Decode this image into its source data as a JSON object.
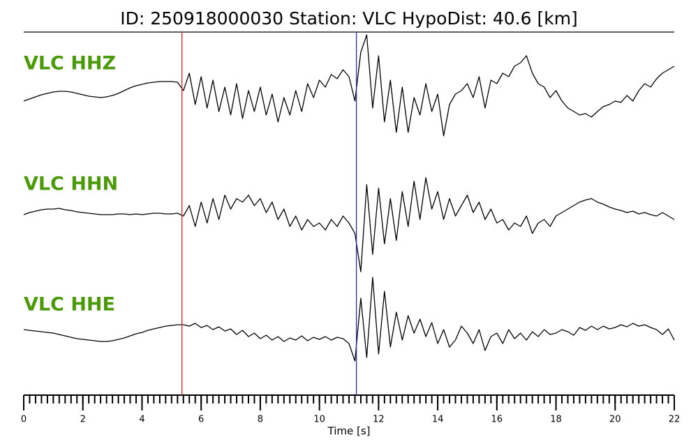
{
  "chart_data": {
    "type": "seismogram",
    "title": "ID: 250918000030   Station: VLC   HypoDist:    40.6 [km]",
    "xlabel": "Time [s]",
    "xlim": [
      0,
      22
    ],
    "xticks": [
      0,
      2,
      4,
      6,
      8,
      10,
      12,
      14,
      16,
      18,
      20,
      22
    ],
    "xminorticks": [
      0,
      0.2,
      0.4,
      0.6,
      0.8,
      1,
      1.2,
      1.4,
      1.6,
      1.8,
      2,
      2.2,
      2.4,
      2.6,
      2.8,
      3,
      3.2,
      3.4,
      3.6,
      3.8,
      4,
      4.2,
      4.4,
      4.6,
      4.8,
      5,
      5.2,
      5.4,
      5.6,
      5.8,
      6,
      6.2,
      6.4,
      6.6,
      6.8,
      7,
      7.2,
      7.4,
      7.6,
      7.8,
      8,
      8.2,
      8.4,
      8.6,
      8.8,
      9,
      9.2,
      9.4,
      9.6,
      9.8,
      10,
      10.2,
      10.4,
      10.6,
      10.8,
      11,
      11.2,
      11.4,
      11.6,
      11.8,
      12,
      12.2,
      12.4,
      12.6,
      12.8,
      13,
      13.2,
      13.4,
      13.6,
      13.8,
      14,
      14.2,
      14.4,
      14.6,
      14.8,
      15,
      15.2,
      15.4,
      15.6,
      15.8,
      16,
      16.2,
      16.4,
      16.6,
      16.8,
      17,
      17.2,
      17.4,
      17.6,
      17.8,
      18,
      18.2,
      18.4,
      18.6,
      18.8,
      19,
      19.2,
      19.4,
      19.6,
      19.8,
      20,
      20.2,
      20.4,
      20.6,
      20.8,
      21,
      21.2,
      21.4,
      21.6,
      21.8,
      22
    ],
    "ylim": [
      -85,
      85
    ],
    "label_color": "#4a9a0a",
    "x": [
      0,
      0.2,
      0.4,
      0.6,
      0.8,
      1,
      1.2,
      1.4,
      1.6,
      1.8,
      2,
      2.2,
      2.4,
      2.6,
      2.8,
      3,
      3.2,
      3.4,
      3.6,
      3.8,
      4,
      4.2,
      4.4,
      4.6,
      4.8,
      5,
      5.2,
      5.4,
      5.6,
      5.8,
      6,
      6.2,
      6.4,
      6.6,
      6.8,
      7,
      7.2,
      7.4,
      7.6,
      7.8,
      8,
      8.2,
      8.4,
      8.6,
      8.8,
      9,
      9.2,
      9.4,
      9.6,
      9.8,
      10,
      10.2,
      10.4,
      10.6,
      10.8,
      11,
      11.2,
      11.4,
      11.6,
      11.8,
      12,
      12.2,
      12.4,
      12.6,
      12.8,
      13,
      13.2,
      13.4,
      13.6,
      13.8,
      14,
      14.2,
      14.4,
      14.6,
      14.8,
      15,
      15.2,
      15.4,
      15.6,
      15.8,
      16,
      16.2,
      16.4,
      16.6,
      16.8,
      17,
      17.2,
      17.4,
      17.6,
      17.8,
      18,
      18.2,
      18.4,
      18.6,
      18.8,
      19,
      19.2,
      19.4,
      19.6,
      19.8,
      20,
      20.2,
      20.4,
      20.6,
      20.8,
      21,
      21.2,
      21.4,
      21.6,
      21.8,
      22
    ],
    "series": [
      {
        "name": "VLC HHZ",
        "color": "#000000",
        "values": [
          -10,
          -7,
          -4,
          -1,
          1,
          3,
          4,
          4,
          3,
          1,
          -1,
          -3,
          -4,
          -5,
          -4,
          -2,
          1,
          5,
          9,
          12,
          14,
          16,
          17,
          18,
          18,
          18,
          17,
          5,
          30,
          -15,
          25,
          -20,
          20,
          -25,
          10,
          -30,
          15,
          -35,
          5,
          -25,
          10,
          -30,
          0,
          -40,
          -5,
          -30,
          5,
          -25,
          15,
          -5,
          20,
          10,
          28,
          22,
          35,
          25,
          -10,
          60,
          85,
          -20,
          55,
          -40,
          20,
          -55,
          10,
          -55,
          -5,
          -30,
          15,
          -25,
          0,
          -60,
          -15,
          0,
          5,
          15,
          -5,
          25,
          -20,
          20,
          15,
          30,
          25,
          40,
          45,
          55,
          30,
          15,
          10,
          -5,
          5,
          -10,
          -20,
          -25,
          -30,
          -28,
          -33,
          -25,
          -18,
          -15,
          -10,
          -12,
          -2,
          -10,
          5,
          15,
          10,
          22,
          30,
          35,
          40
        ]
      },
      {
        "name": "VLC HHN",
        "color": "#000000",
        "values": [
          -3,
          0,
          2,
          4,
          5,
          5,
          6,
          4,
          3,
          1,
          0,
          -1,
          -2,
          -3,
          -3,
          -3,
          -2,
          -2,
          -3,
          -2,
          -3,
          -2,
          -1,
          -1,
          -2,
          -2,
          -1,
          -5,
          10,
          -20,
          15,
          -15,
          20,
          -10,
          25,
          5,
          20,
          15,
          25,
          10,
          20,
          0,
          15,
          -10,
          5,
          -20,
          -5,
          -25,
          -10,
          -20,
          -15,
          -25,
          -10,
          -20,
          -5,
          -15,
          -30,
          -85,
          40,
          -60,
          35,
          -45,
          20,
          -40,
          30,
          -20,
          45,
          -10,
          50,
          5,
          30,
          -10,
          20,
          -5,
          10,
          25,
          0,
          15,
          -10,
          5,
          -15,
          -10,
          -25,
          -15,
          -20,
          -5,
          -30,
          -15,
          -10,
          -20,
          -5,
          0,
          5,
          10,
          15,
          18,
          20,
          15,
          12,
          8,
          5,
          3,
          0,
          2,
          -2,
          0,
          -3,
          -5,
          0,
          -5,
          -10
        ]
      },
      {
        "name": "VLC HHE",
        "color": "#000000",
        "values": [
          5,
          4,
          3,
          2,
          1,
          0,
          -2,
          -4,
          -6,
          -8,
          -9,
          -10,
          -11,
          -12,
          -12,
          -11,
          -9,
          -7,
          -4,
          -1,
          1,
          4,
          6,
          8,
          10,
          11,
          12,
          12,
          10,
          14,
          8,
          11,
          5,
          9,
          3,
          6,
          -2,
          4,
          -5,
          0,
          -8,
          -3,
          -10,
          -5,
          -12,
          -7,
          -10,
          -4,
          -11,
          -6,
          -9,
          -5,
          -10,
          -6,
          -8,
          -15,
          -40,
          50,
          -35,
          80,
          -30,
          60,
          -20,
          30,
          -10,
          25,
          0,
          20,
          -5,
          15,
          -15,
          5,
          -20,
          -10,
          10,
          0,
          -15,
          5,
          -25,
          -5,
          0,
          -15,
          5,
          -8,
          0,
          -10,
          2,
          -5,
          5,
          -2,
          0,
          5,
          2,
          -3,
          8,
          4,
          10,
          5,
          10,
          6,
          8,
          12,
          9,
          14,
          10,
          12,
          8,
          5,
          -2,
          6,
          -10
        ]
      }
    ],
    "markers": [
      {
        "x": 5.35,
        "color": "#e8231f"
      },
      {
        "x": 11.25,
        "color": "#2a2ab0"
      }
    ]
  }
}
